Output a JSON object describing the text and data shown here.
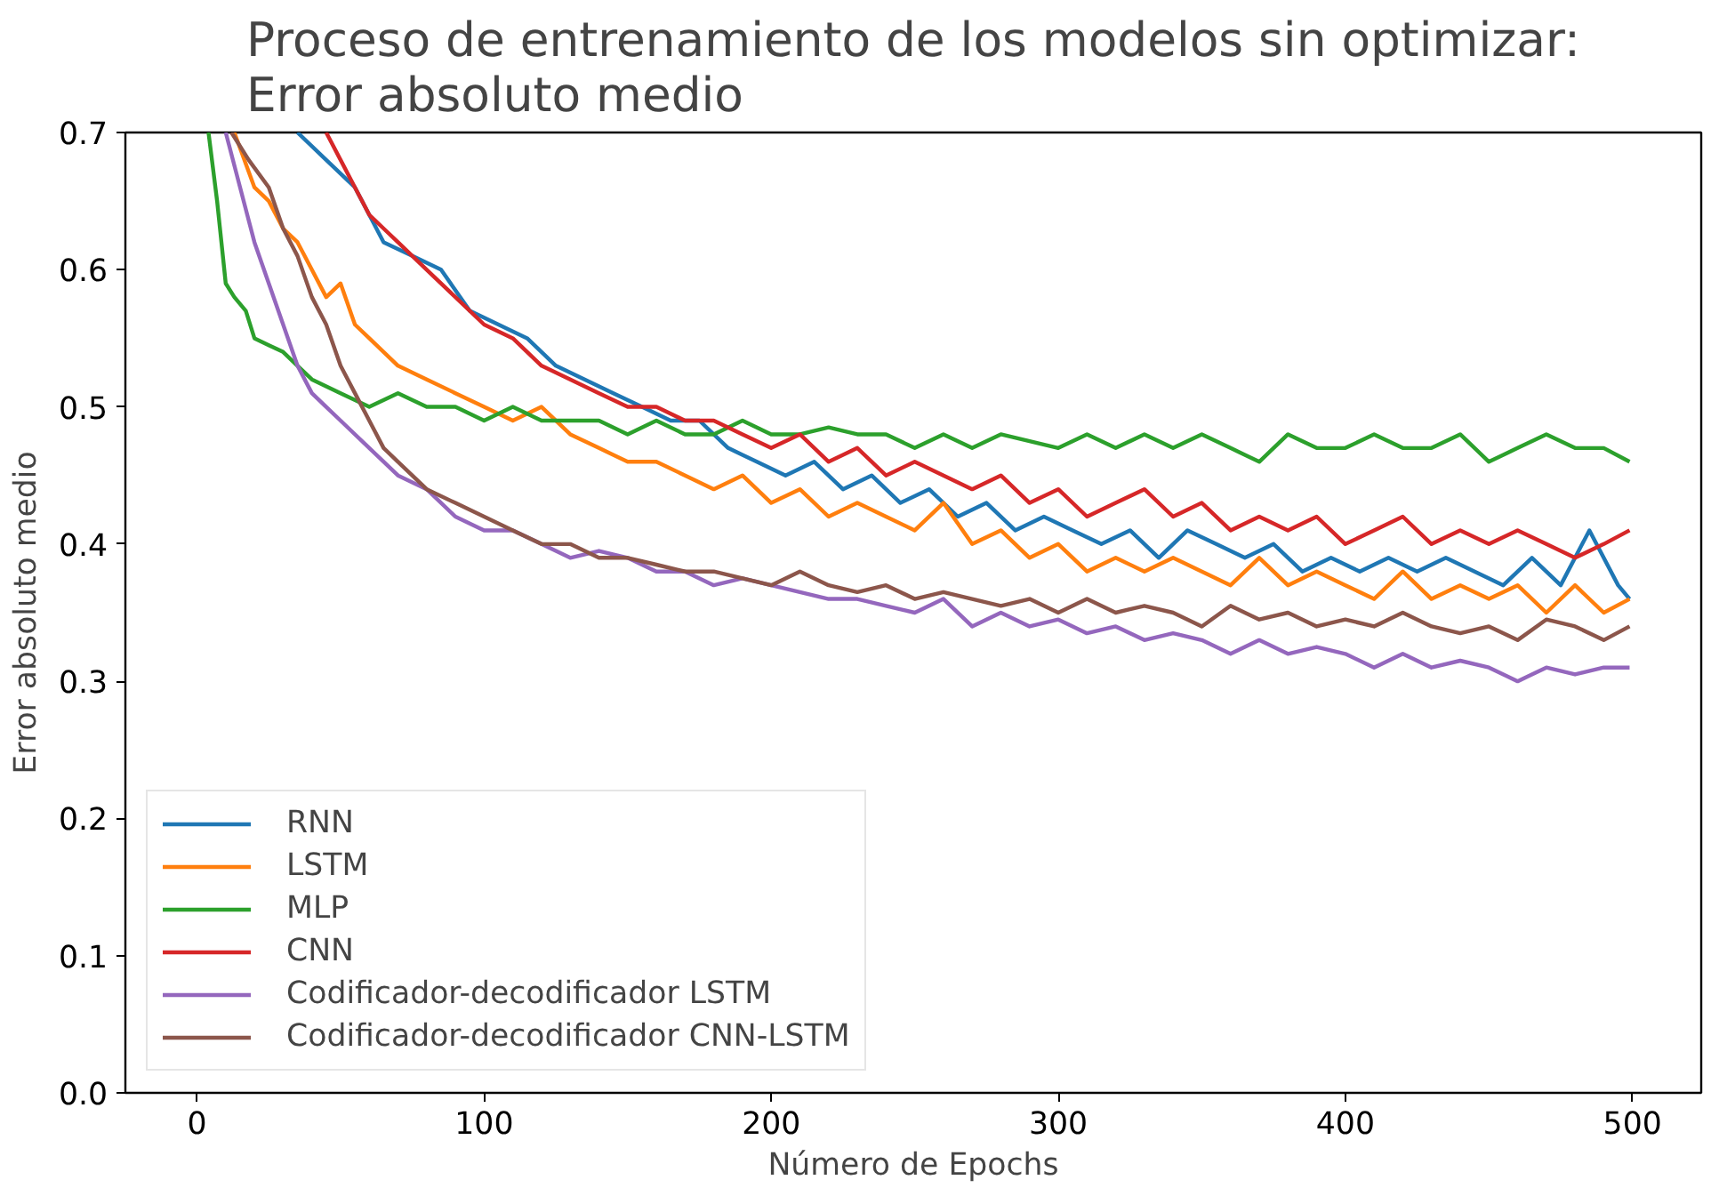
{
  "chart_data": {
    "type": "line",
    "title": "Proceso de entrenamiento de los modelos sin optimizar:\nError absoluto medio",
    "xlabel": "Número de Epochs",
    "ylabel": "Error absoluto medio",
    "xlim": [
      -24.95,
      523.95
    ],
    "ylim": [
      0,
      0.7
    ],
    "xticks": [
      0,
      100,
      200,
      300,
      400,
      500
    ],
    "yticks": [
      {
        "value": 0,
        "label": "0.0"
      },
      0.1,
      0.2,
      0.3,
      0.4,
      0.5,
      0.6,
      0.7
    ],
    "grid": false,
    "legend": "bottom left",
    "line_style": "solid",
    "series": [
      {
        "name": "RNN",
        "color": "#1f77b4",
        "x": [
          35,
          45,
          55,
          65,
          75,
          85,
          95,
          105,
          115,
          125,
          135,
          145,
          155,
          165,
          175,
          185,
          195,
          205,
          215,
          225,
          235,
          245,
          255,
          265,
          275,
          285,
          295,
          305,
          315,
          325,
          335,
          345,
          355,
          365,
          375,
          385,
          395,
          405,
          415,
          425,
          435,
          445,
          455,
          465,
          475,
          485,
          495,
          499
        ],
        "values": [
          0.7,
          0.68,
          0.66,
          0.62,
          0.61,
          0.6,
          0.57,
          0.56,
          0.55,
          0.53,
          0.52,
          0.51,
          0.5,
          0.49,
          0.49,
          0.47,
          0.46,
          0.45,
          0.46,
          0.44,
          0.45,
          0.43,
          0.44,
          0.42,
          0.43,
          0.41,
          0.42,
          0.41,
          0.4,
          0.41,
          0.39,
          0.41,
          0.4,
          0.39,
          0.4,
          0.38,
          0.39,
          0.38,
          0.39,
          0.38,
          0.39,
          0.38,
          0.37,
          0.39,
          0.37,
          0.41,
          0.37,
          0.36
        ]
      },
      {
        "name": "LSTM",
        "color": "#ff7f0e",
        "x": [
          13,
          20,
          25,
          30,
          35,
          40,
          45,
          50,
          55,
          60,
          65,
          70,
          80,
          90,
          100,
          110,
          120,
          130,
          140,
          150,
          160,
          170,
          180,
          190,
          200,
          210,
          220,
          230,
          240,
          250,
          260,
          270,
          280,
          290,
          300,
          310,
          320,
          330,
          340,
          350,
          360,
          370,
          380,
          390,
          400,
          410,
          420,
          430,
          440,
          450,
          460,
          470,
          480,
          490,
          499
        ],
        "values": [
          0.7,
          0.66,
          0.65,
          0.63,
          0.62,
          0.6,
          0.58,
          0.59,
          0.56,
          0.55,
          0.54,
          0.53,
          0.52,
          0.51,
          0.5,
          0.49,
          0.5,
          0.48,
          0.47,
          0.46,
          0.46,
          0.45,
          0.44,
          0.45,
          0.43,
          0.44,
          0.42,
          0.43,
          0.42,
          0.41,
          0.43,
          0.4,
          0.41,
          0.39,
          0.4,
          0.38,
          0.39,
          0.38,
          0.39,
          0.38,
          0.37,
          0.39,
          0.37,
          0.38,
          0.37,
          0.36,
          0.38,
          0.36,
          0.37,
          0.36,
          0.37,
          0.35,
          0.37,
          0.35,
          0.36
        ]
      },
      {
        "name": "MLP",
        "color": "#2ca02c",
        "x": [
          4,
          7,
          10,
          13,
          17,
          20,
          25,
          30,
          35,
          40,
          50,
          60,
          70,
          80,
          90,
          100,
          110,
          120,
          130,
          140,
          150,
          160,
          170,
          180,
          190,
          200,
          210,
          220,
          230,
          240,
          250,
          260,
          270,
          280,
          290,
          300,
          310,
          320,
          330,
          340,
          350,
          360,
          370,
          380,
          390,
          400,
          410,
          420,
          430,
          440,
          450,
          460,
          470,
          480,
          490,
          499
        ],
        "values": [
          0.7,
          0.65,
          0.59,
          0.58,
          0.57,
          0.55,
          0.545,
          0.54,
          0.53,
          0.52,
          0.51,
          0.5,
          0.51,
          0.5,
          0.5,
          0.49,
          0.5,
          0.49,
          0.49,
          0.49,
          0.48,
          0.49,
          0.48,
          0.48,
          0.49,
          0.48,
          0.48,
          0.485,
          0.48,
          0.48,
          0.47,
          0.48,
          0.47,
          0.48,
          0.475,
          0.47,
          0.48,
          0.47,
          0.48,
          0.47,
          0.48,
          0.47,
          0.46,
          0.48,
          0.47,
          0.47,
          0.48,
          0.47,
          0.47,
          0.48,
          0.46,
          0.47,
          0.48,
          0.47,
          0.47,
          0.46
        ]
      },
      {
        "name": "CNN",
        "color": "#d62728",
        "x": [
          45,
          50,
          55,
          60,
          65,
          70,
          80,
          90,
          100,
          110,
          120,
          130,
          140,
          150,
          160,
          170,
          180,
          190,
          200,
          210,
          220,
          230,
          240,
          250,
          260,
          270,
          280,
          290,
          300,
          310,
          320,
          330,
          340,
          350,
          360,
          370,
          380,
          390,
          400,
          410,
          420,
          430,
          440,
          450,
          460,
          470,
          480,
          490,
          499
        ],
        "values": [
          0.7,
          0.68,
          0.66,
          0.64,
          0.63,
          0.62,
          0.6,
          0.58,
          0.56,
          0.55,
          0.53,
          0.52,
          0.51,
          0.5,
          0.5,
          0.49,
          0.49,
          0.48,
          0.47,
          0.48,
          0.46,
          0.47,
          0.45,
          0.46,
          0.45,
          0.44,
          0.45,
          0.43,
          0.44,
          0.42,
          0.43,
          0.44,
          0.42,
          0.43,
          0.41,
          0.42,
          0.41,
          0.42,
          0.4,
          0.41,
          0.42,
          0.4,
          0.41,
          0.4,
          0.41,
          0.4,
          0.39,
          0.4,
          0.41
        ]
      },
      {
        "name": "Codificador-decodificador LSTM",
        "color": "#9467bd",
        "x": [
          10,
          15,
          20,
          25,
          30,
          35,
          40,
          45,
          50,
          60,
          70,
          80,
          90,
          100,
          110,
          120,
          130,
          140,
          150,
          160,
          170,
          180,
          190,
          200,
          210,
          220,
          230,
          240,
          250,
          260,
          270,
          280,
          290,
          300,
          310,
          320,
          330,
          340,
          350,
          360,
          370,
          380,
          390,
          400,
          410,
          420,
          430,
          440,
          450,
          460,
          470,
          480,
          490,
          499
        ],
        "values": [
          0.7,
          0.66,
          0.62,
          0.59,
          0.56,
          0.53,
          0.51,
          0.5,
          0.49,
          0.47,
          0.45,
          0.44,
          0.42,
          0.41,
          0.41,
          0.4,
          0.39,
          0.395,
          0.39,
          0.38,
          0.38,
          0.37,
          0.375,
          0.37,
          0.365,
          0.36,
          0.36,
          0.355,
          0.35,
          0.36,
          0.34,
          0.35,
          0.34,
          0.345,
          0.335,
          0.34,
          0.33,
          0.335,
          0.33,
          0.32,
          0.33,
          0.32,
          0.325,
          0.32,
          0.31,
          0.32,
          0.31,
          0.315,
          0.31,
          0.3,
          0.31,
          0.305,
          0.31,
          0.31
        ]
      },
      {
        "name": "Codificador-decodificador CNN-LSTM",
        "color": "#8c564b",
        "x": [
          12,
          18,
          25,
          30,
          35,
          40,
          45,
          50,
          55,
          60,
          65,
          70,
          80,
          90,
          100,
          110,
          120,
          130,
          140,
          150,
          160,
          170,
          180,
          190,
          200,
          210,
          220,
          230,
          240,
          250,
          260,
          270,
          280,
          290,
          300,
          310,
          320,
          330,
          340,
          350,
          360,
          370,
          380,
          390,
          400,
          410,
          420,
          430,
          440,
          450,
          460,
          470,
          480,
          490,
          499
        ],
        "values": [
          0.7,
          0.68,
          0.66,
          0.63,
          0.61,
          0.58,
          0.56,
          0.53,
          0.51,
          0.49,
          0.47,
          0.46,
          0.44,
          0.43,
          0.42,
          0.41,
          0.4,
          0.4,
          0.39,
          0.39,
          0.385,
          0.38,
          0.38,
          0.375,
          0.37,
          0.38,
          0.37,
          0.365,
          0.37,
          0.36,
          0.365,
          0.36,
          0.355,
          0.36,
          0.35,
          0.36,
          0.35,
          0.355,
          0.35,
          0.34,
          0.355,
          0.345,
          0.35,
          0.34,
          0.345,
          0.34,
          0.35,
          0.34,
          0.335,
          0.34,
          0.33,
          0.345,
          0.34,
          0.33,
          0.34
        ]
      }
    ]
  }
}
